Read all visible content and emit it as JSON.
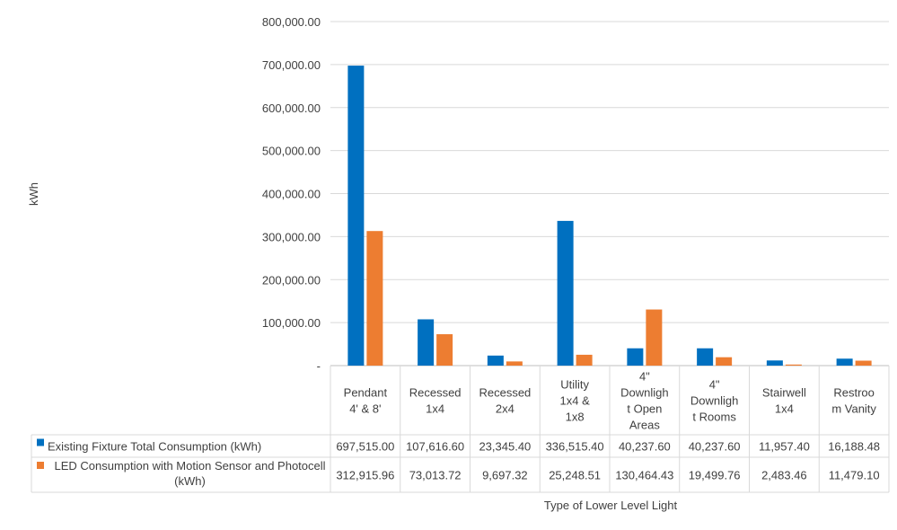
{
  "chart_data": {
    "type": "bar",
    "title": "",
    "ylabel": "kWh",
    "xlabel": "Type of Lower Level Light",
    "ylim": [
      0,
      800000
    ],
    "ytick_step": 100000,
    "ytick_labels": [
      "-",
      "100,000.00",
      "200,000.00",
      "300,000.00",
      "400,000.00",
      "500,000.00",
      "600,000.00",
      "700,000.00",
      "800,000.00"
    ],
    "grid": true,
    "legend": "data-table",
    "categories": [
      [
        "Pendant",
        "4' & 8'"
      ],
      [
        "Recessed",
        "1x4"
      ],
      [
        "Recessed",
        "2x4"
      ],
      [
        "Utility",
        "1x4 &",
        "1x8"
      ],
      [
        "4\"",
        "Downligh",
        "t Open",
        "Areas"
      ],
      [
        "4\"",
        "Downligh",
        "t Rooms"
      ],
      [
        "Stairwell",
        "1x4"
      ],
      [
        "Restroo",
        "m Vanity"
      ]
    ],
    "series": [
      {
        "name": "Existing Fixture Total Consumption (kWh)",
        "name_lines": [
          "Existing Fixture Total Consumption (kWh)"
        ],
        "color": "#0070C0",
        "values": [
          697515.0,
          107616.6,
          23345.4,
          336515.4,
          40237.6,
          40237.6,
          11957.4,
          16188.48
        ],
        "value_labels": [
          "697,515.00",
          "107,616.60",
          "23,345.40",
          "336,515.40",
          "40,237.60",
          "40,237.60",
          "11,957.40",
          "16,188.48"
        ]
      },
      {
        "name": "LED Consumption with Motion Sensor and Photocell (kWh)",
        "name_lines": [
          "LED Consumption with Motion Sensor and Photocell",
          "(kWh)"
        ],
        "color": "#ED7D31",
        "values": [
          312915.96,
          73013.72,
          9697.32,
          25248.51,
          130464.43,
          19499.76,
          2483.46,
          11479.1
        ],
        "value_labels": [
          "312,915.96",
          "73,013.72",
          "9,697.32",
          "25,248.51",
          "130,464.43",
          "19,499.76",
          "2,483.46",
          "11,479.10"
        ]
      }
    ]
  }
}
